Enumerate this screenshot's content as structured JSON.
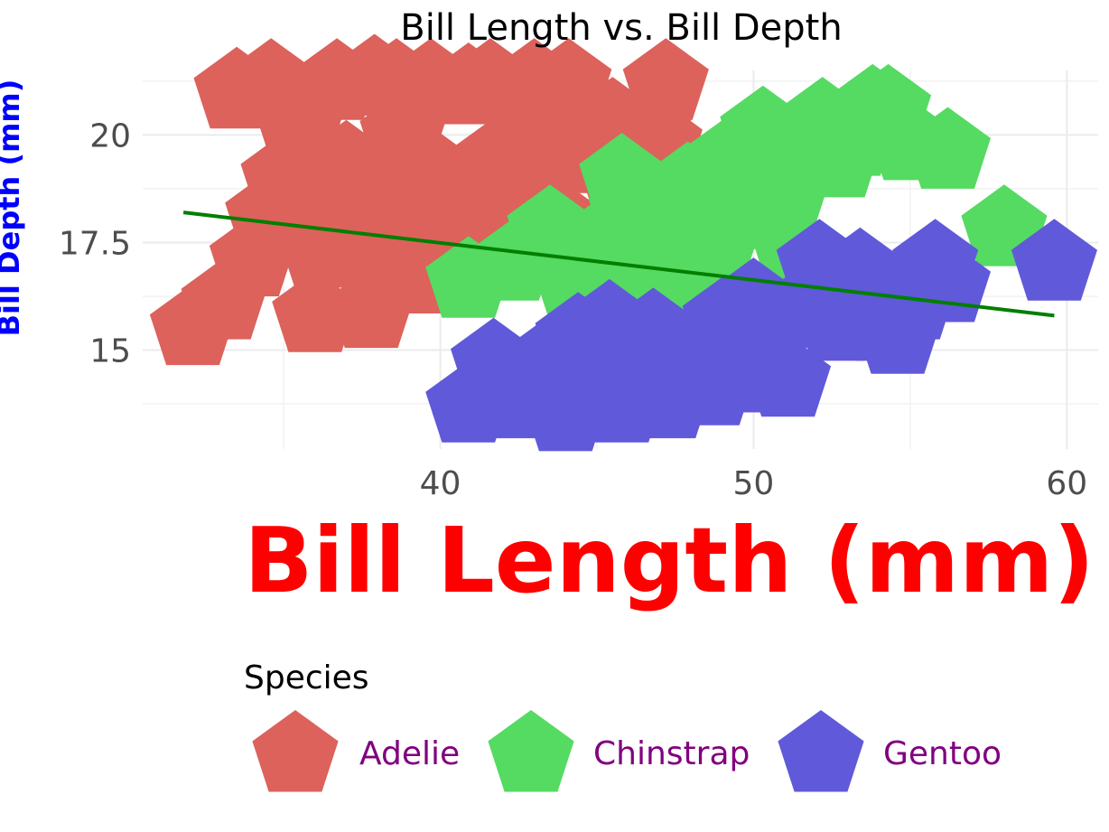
{
  "chart_data": {
    "type": "scatter",
    "title": "Bill Length vs. Bill Depth",
    "xlabel": "Bill Length (mm)",
    "ylabel": "Bill Depth (mm)",
    "xlim": [
      30.5,
      61
    ],
    "ylim": [
      12.7,
      21.5
    ],
    "xticks": [
      "40",
      "50",
      "60"
    ],
    "yticks": [
      "15",
      "17.5",
      "20"
    ],
    "grid": true,
    "marker": "pentagon",
    "legend_title": "Species",
    "legend_position": "bottom",
    "colors": {
      "xlabel": "#ff0000",
      "ylabel": "#0000ff",
      "legend_label": "#800080",
      "trend": "#007f00",
      "grid": "#ebebeb"
    },
    "series": [
      {
        "name": "Adelie",
        "color": "#dc625b",
        "points": [
          [
            32.1,
            15.5
          ],
          [
            33.1,
            16.1
          ],
          [
            34.0,
            17.1
          ],
          [
            34.5,
            18.1
          ],
          [
            35.0,
            19.0
          ],
          [
            35.5,
            20.1
          ],
          [
            35.9,
            19.2
          ],
          [
            36.2,
            17.3
          ],
          [
            36.6,
            18.1
          ],
          [
            37.0,
            19.3
          ],
          [
            37.3,
            17.8
          ],
          [
            37.7,
            18.7
          ],
          [
            38.1,
            17.0
          ],
          [
            38.5,
            17.9
          ],
          [
            38.8,
            20.0
          ],
          [
            39.2,
            19.1
          ],
          [
            39.5,
            16.7
          ],
          [
            39.8,
            19.1
          ],
          [
            40.2,
            17.0
          ],
          [
            40.6,
            18.6
          ],
          [
            40.9,
            16.8
          ],
          [
            41.1,
            19.0
          ],
          [
            41.5,
            18.3
          ],
          [
            41.8,
            19.4
          ],
          [
            42.2,
            18.5
          ],
          [
            42.5,
            20.7
          ],
          [
            42.9,
            17.6
          ],
          [
            43.2,
            19.0
          ],
          [
            43.5,
            18.1
          ],
          [
            44.1,
            19.8
          ],
          [
            44.5,
            19.5
          ],
          [
            45.0,
            20.0
          ],
          [
            45.5,
            20.3
          ],
          [
            45.8,
            18.9
          ],
          [
            46.2,
            19.6
          ],
          [
            46.8,
            20.4
          ],
          [
            47.0,
            19.8
          ],
          [
            47.2,
            21.2
          ],
          [
            33.5,
            21.0
          ],
          [
            34.6,
            21.2
          ],
          [
            36.7,
            21.2
          ],
          [
            37.9,
            21.3
          ],
          [
            38.6,
            21.2
          ],
          [
            39.7,
            21.2
          ],
          [
            40.9,
            21.1
          ],
          [
            41.6,
            21.2
          ],
          [
            43.0,
            21.2
          ],
          [
            44.1,
            21.2
          ],
          [
            36.0,
            15.8
          ],
          [
            37.8,
            15.9
          ],
          [
            38.4,
            17.2
          ],
          [
            39.6,
            17.7
          ]
        ]
      },
      {
        "name": "Chinstrap",
        "color": "#55da62",
        "points": [
          [
            40.9,
            16.6
          ],
          [
            42.3,
            17.0
          ],
          [
            43.5,
            17.8
          ],
          [
            44.3,
            16.6
          ],
          [
            45.3,
            17.6
          ],
          [
            45.8,
            19.0
          ],
          [
            46.4,
            17.0
          ],
          [
            47.2,
            17.8
          ],
          [
            47.6,
            16.5
          ],
          [
            48.2,
            16.3
          ],
          [
            48.7,
            18.3
          ],
          [
            49.2,
            19.4
          ],
          [
            49.7,
            18.9
          ],
          [
            50.3,
            20.1
          ],
          [
            50.6,
            19.3
          ],
          [
            51.1,
            18.7
          ],
          [
            51.6,
            19.8
          ],
          [
            52.2,
            20.3
          ],
          [
            52.7,
            19.4
          ],
          [
            53.2,
            19.9
          ],
          [
            53.8,
            20.6
          ],
          [
            54.3,
            20.6
          ],
          [
            55.0,
            19.8
          ],
          [
            56.2,
            19.6
          ],
          [
            58.0,
            17.8
          ],
          [
            46.1,
            18.2
          ],
          [
            46.7,
            17.4
          ],
          [
            48.9,
            17.6
          ],
          [
            50.1,
            19.5
          ],
          [
            51.3,
            17.3
          ],
          [
            47.9,
            18.8
          ],
          [
            44.8,
            17.2
          ],
          [
            45.9,
            16.6
          ],
          [
            49.5,
            18.2
          ]
        ]
      },
      {
        "name": "Gentoo",
        "color": "#6059da",
        "points": [
          [
            40.9,
            13.7
          ],
          [
            41.7,
            14.7
          ],
          [
            42.6,
            13.8
          ],
          [
            43.2,
            14.6
          ],
          [
            43.6,
            13.9
          ],
          [
            44.4,
            15.3
          ],
          [
            45.1,
            14.5
          ],
          [
            45.5,
            13.8
          ],
          [
            46.1,
            15.1
          ],
          [
            46.4,
            14.1
          ],
          [
            46.8,
            15.4
          ],
          [
            47.3,
            13.8
          ],
          [
            47.6,
            14.5
          ],
          [
            48.2,
            15.0
          ],
          [
            48.7,
            14.1
          ],
          [
            49.1,
            15.7
          ],
          [
            49.5,
            14.8
          ],
          [
            50.0,
            16.1
          ],
          [
            50.5,
            15.2
          ],
          [
            51.1,
            14.3
          ],
          [
            51.5,
            15.9
          ],
          [
            52.1,
            17.0
          ],
          [
            52.7,
            15.6
          ],
          [
            53.4,
            16.8
          ],
          [
            54.1,
            15.6
          ],
          [
            54.6,
            15.3
          ],
          [
            55.1,
            16.1
          ],
          [
            55.8,
            17.0
          ],
          [
            56.2,
            16.5
          ],
          [
            59.6,
            17.0
          ],
          [
            44.0,
            13.5
          ],
          [
            45.8,
            13.7
          ],
          [
            47.8,
            14.2
          ],
          [
            49.9,
            14.4
          ],
          [
            45.4,
            15.6
          ]
        ]
      }
    ],
    "trend_line": {
      "x": [
        31.8,
        59.6
      ],
      "y": [
        18.2,
        15.8
      ]
    }
  }
}
